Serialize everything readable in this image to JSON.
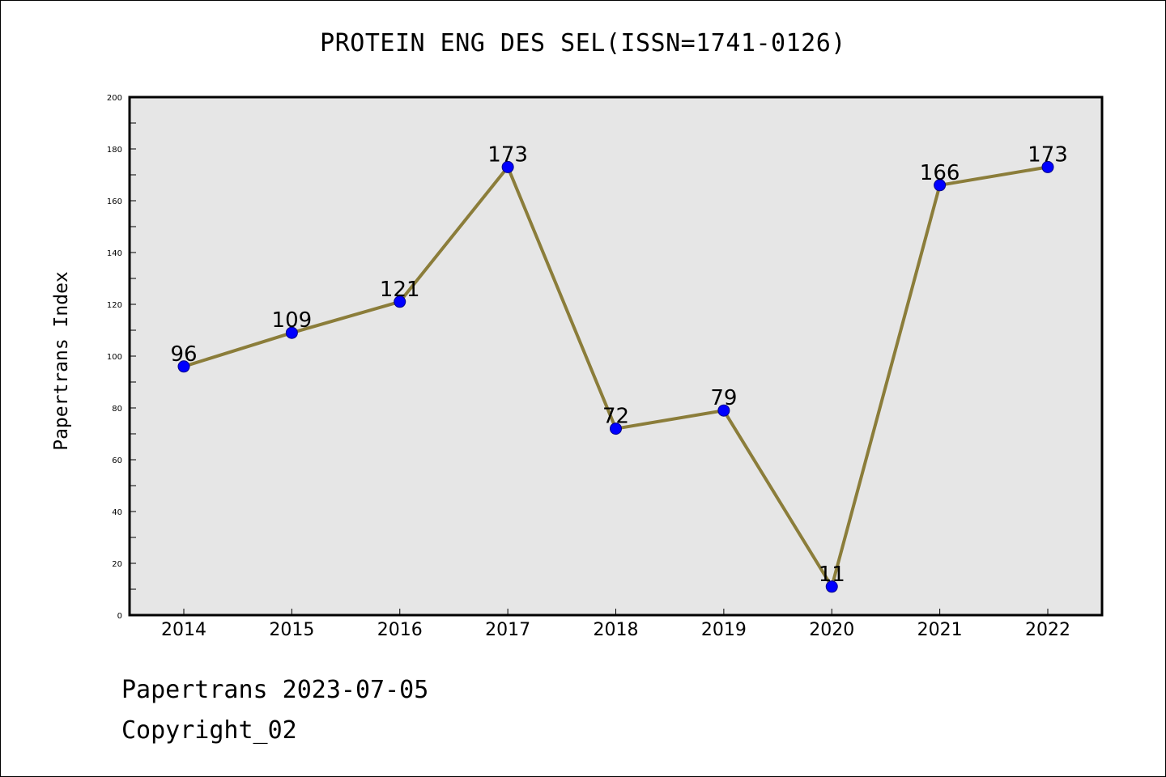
{
  "chart_data": {
    "type": "line",
    "title": "PROTEIN ENG DES SEL(ISSN=1741-0126)",
    "xlabel": "",
    "ylabel": "Papertrans Index",
    "categories": [
      "2014",
      "2015",
      "2016",
      "2017",
      "2018",
      "2019",
      "2020",
      "2021",
      "2022"
    ],
    "series": [
      {
        "values": [
          96,
          109,
          121,
          173,
          72,
          79,
          11,
          166,
          173
        ]
      }
    ],
    "data_labels": [
      "96",
      "109",
      "121",
      "173",
      "72",
      "79",
      "11",
      "166",
      "173"
    ],
    "ylim": [
      0,
      200
    ],
    "yticks": [
      "0",
      "20",
      "40",
      "60",
      "80",
      "100",
      "120",
      "140",
      "160",
      "180",
      "200"
    ],
    "grid": false,
    "legend": "none",
    "colors": {
      "line": "#8b7d3a",
      "marker": "#0000ff",
      "marker_edge": "#00008b",
      "plot_background": "#e6e6e6"
    }
  },
  "footer": {
    "date_line": "Papertrans 2023-07-05",
    "copyright_line": "Copyright_02"
  }
}
